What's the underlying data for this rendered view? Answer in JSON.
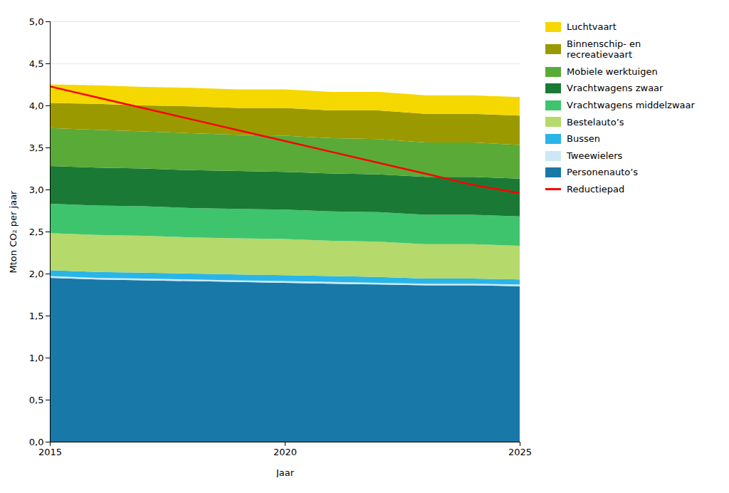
{
  "chart_data": {
    "type": "area",
    "stacked": true,
    "xlabel": "Jaar",
    "ylabel": "Mton CO₂ per jaar",
    "x": [
      2015,
      2016,
      2017,
      2018,
      2019,
      2020,
      2021,
      2022,
      2023,
      2024,
      2025
    ],
    "series": [
      {
        "name": "Personenauto’s",
        "color": "#1878a8",
        "values": [
          1.95,
          1.93,
          1.92,
          1.91,
          1.9,
          1.89,
          1.88,
          1.87,
          1.86,
          1.86,
          1.85
        ]
      },
      {
        "name": "Tweewielers",
        "color": "#cce8f5",
        "values": [
          0.02,
          0.02,
          0.02,
          0.02,
          0.02,
          0.02,
          0.02,
          0.02,
          0.02,
          0.02,
          0.02
        ]
      },
      {
        "name": "Bussen",
        "color": "#29b5e8",
        "values": [
          0.07,
          0.07,
          0.07,
          0.07,
          0.07,
          0.07,
          0.07,
          0.07,
          0.06,
          0.06,
          0.06
        ]
      },
      {
        "name": "Bestelauto’s",
        "color": "#b5d96b",
        "values": [
          0.44,
          0.44,
          0.44,
          0.43,
          0.43,
          0.43,
          0.42,
          0.42,
          0.41,
          0.41,
          0.4
        ]
      },
      {
        "name": "Vrachtwagens middelzwaar",
        "color": "#3ec46d",
        "values": [
          0.35,
          0.35,
          0.35,
          0.35,
          0.35,
          0.35,
          0.35,
          0.35,
          0.35,
          0.35,
          0.35
        ]
      },
      {
        "name": "Vrachtwagens zwaar",
        "color": "#1a7a35",
        "values": [
          0.45,
          0.45,
          0.45,
          0.45,
          0.45,
          0.45,
          0.45,
          0.45,
          0.45,
          0.45,
          0.45
        ]
      },
      {
        "name": "Mobiele werktuigen",
        "color": "#5aaa38",
        "values": [
          0.45,
          0.45,
          0.44,
          0.44,
          0.43,
          0.43,
          0.42,
          0.42,
          0.41,
          0.41,
          0.4
        ]
      },
      {
        "name": "Binnenschip- en\nrecreatievaart",
        "color": "#9a9a00",
        "values": [
          0.3,
          0.31,
          0.31,
          0.32,
          0.32,
          0.33,
          0.33,
          0.34,
          0.34,
          0.34,
          0.35
        ]
      },
      {
        "name": "Luchtvaart",
        "color": "#f5d800",
        "values": [
          0.22,
          0.22,
          0.22,
          0.22,
          0.22,
          0.22,
          0.22,
          0.22,
          0.22,
          0.22,
          0.22
        ]
      },
      {
        "name": "Reductiepad",
        "type": "line",
        "color": "red",
        "values": [
          4.23,
          4.1,
          3.97,
          3.84,
          3.71,
          3.58,
          3.45,
          3.32,
          3.19,
          3.06,
          2.96
        ]
      }
    ],
    "xlim": [
      2015,
      2025
    ],
    "xticks": [
      2015,
      2020,
      2025
    ],
    "ylim": [
      0.0,
      5.0
    ],
    "yticks": [
      {
        "value": 0.0,
        "label": "0,0"
      },
      {
        "value": 0.5,
        "label": "0,5"
      },
      {
        "value": 1.0,
        "label": "1,0"
      },
      {
        "value": 1.5,
        "label": "1,5"
      },
      {
        "value": 2.0,
        "label": "2,0"
      },
      {
        "value": 2.5,
        "label": "2,5"
      },
      {
        "value": 3.0,
        "label": "3,0"
      },
      {
        "value": 3.5,
        "label": "3,5"
      },
      {
        "value": 4.0,
        "label": "4,0"
      },
      {
        "value": 4.5,
        "label": "4,5"
      },
      {
        "value": 5.0,
        "label": "5,0"
      }
    ],
    "grid": true,
    "legend": "right"
  }
}
